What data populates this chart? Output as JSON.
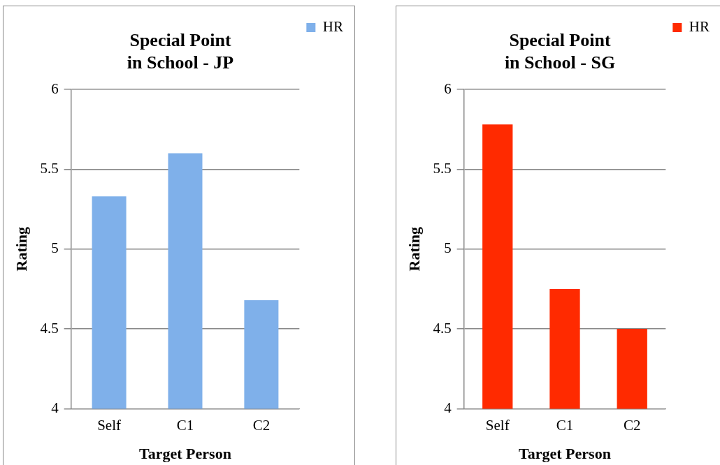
{
  "chart_data": [
    {
      "type": "bar",
      "title": "Special Point\nin School - JP",
      "xlabel": "Target Person",
      "ylabel": "Rating",
      "categories": [
        "Self",
        "C1",
        "C2"
      ],
      "series": [
        {
          "name": "HR",
          "color": "#7fb0ea",
          "values": [
            5.33,
            5.6,
            4.68
          ]
        }
      ],
      "ylim": [
        4,
        6
      ],
      "yticks": [
        4,
        4.5,
        5,
        5.5,
        6
      ],
      "grid": "y",
      "legend": "top right"
    },
    {
      "type": "bar",
      "title": "Special Point\nin School - SG",
      "xlabel": "Target Person",
      "ylabel": "Rating",
      "categories": [
        "Self",
        "C1",
        "C2"
      ],
      "series": [
        {
          "name": "HR",
          "color": "#ff2a00",
          "values": [
            5.78,
            4.75,
            4.5
          ]
        }
      ],
      "ylim": [
        4,
        6
      ],
      "yticks": [
        4,
        4.5,
        5,
        5.5,
        6
      ],
      "grid": "y",
      "legend": "top right"
    }
  ]
}
